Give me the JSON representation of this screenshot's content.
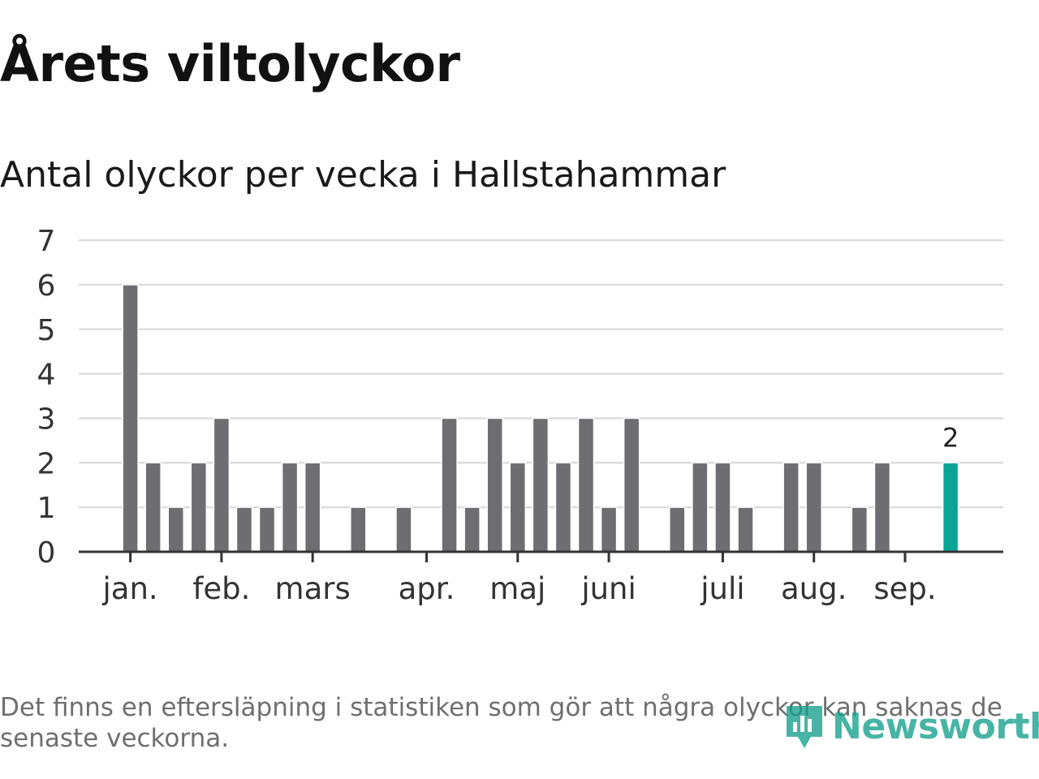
{
  "header": {
    "title": "Årets viltolyckor",
    "subtitle": "Antal olyckor per vecka i Hallstahammar"
  },
  "footnote": "Det finns en eftersläpning i statistiken som gör att några olyckor kan saknas de senaste veckorna.",
  "logo": {
    "text": "Newsworthy",
    "icon": "bar-chart-badge-icon"
  },
  "colors": {
    "bar": "#6e6d72",
    "highlight": "#0aa496",
    "grid": "#dddddd",
    "axis": "#333333",
    "logo": "#14a08c"
  },
  "chart_data": {
    "type": "bar",
    "title": "Årets viltolyckor",
    "subtitle": "Antal olyckor per vecka i Hallstahammar",
    "xlabel": "",
    "ylabel": "",
    "ylim": [
      0,
      7
    ],
    "yticks": [
      0,
      1,
      2,
      3,
      4,
      5,
      6,
      7
    ],
    "grid": true,
    "x": [
      1,
      2,
      3,
      4,
      5,
      6,
      7,
      8,
      9,
      10,
      11,
      12,
      13,
      14,
      15,
      16,
      17,
      18,
      19,
      20,
      21,
      22,
      23,
      24,
      25,
      26,
      27,
      28,
      29,
      30,
      31,
      32,
      33,
      34,
      35,
      36,
      37,
      38
    ],
    "values": [
      6,
      2,
      1,
      2,
      3,
      1,
      1,
      2,
      2,
      0,
      1,
      0,
      1,
      0,
      3,
      1,
      3,
      2,
      3,
      2,
      3,
      1,
      3,
      0,
      1,
      2,
      2,
      1,
      0,
      2,
      2,
      0,
      1,
      2,
      0,
      0,
      2,
      0
    ],
    "highlight_index": 36,
    "highlight_label": "2",
    "month_ticks": [
      {
        "label": "jan.",
        "pos": 1
      },
      {
        "label": "feb.",
        "pos": 5
      },
      {
        "label": "mars",
        "pos": 9
      },
      {
        "label": "apr.",
        "pos": 14
      },
      {
        "label": "maj",
        "pos": 18
      },
      {
        "label": "juni",
        "pos": 22
      },
      {
        "label": "juli",
        "pos": 27
      },
      {
        "label": "aug.",
        "pos": 31
      },
      {
        "label": "sep.",
        "pos": 35
      }
    ]
  }
}
